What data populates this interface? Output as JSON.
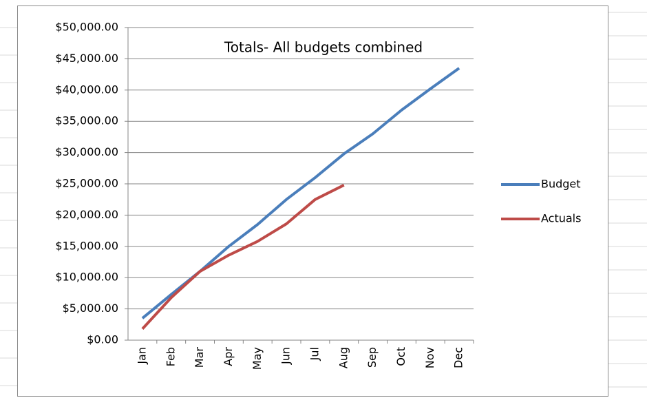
{
  "chart_data": {
    "type": "line",
    "title": "Totals- All budgets combined",
    "categories": [
      "Jan",
      "Feb",
      "Mar",
      "Apr",
      "May",
      "Jun",
      "Jul",
      "Aug",
      "Sep",
      "Oct",
      "Nov",
      "Dec"
    ],
    "series": [
      {
        "name": "Budget",
        "color": "#4a7ebb",
        "values": [
          3500,
          7300,
          11000,
          15000,
          18500,
          22500,
          26000,
          29800,
          33000,
          36800,
          40200,
          43500
        ]
      },
      {
        "name": "Actuals",
        "color": "#be4b48",
        "values": [
          1800,
          6800,
          11000,
          13600,
          15800,
          18600,
          22500,
          24800,
          null,
          null,
          null,
          null
        ]
      }
    ],
    "ylim": [
      0,
      50000
    ],
    "yticks": [
      {
        "value": 0,
        "label": "$0.00"
      },
      {
        "value": 5000,
        "label": "$5,000.00"
      },
      {
        "value": 10000,
        "label": "$10,000.00"
      },
      {
        "value": 15000,
        "label": "$15,000.00"
      },
      {
        "value": 20000,
        "label": "$20,000.00"
      },
      {
        "value": 25000,
        "label": "$25,000.00"
      },
      {
        "value": 30000,
        "label": "$30,000.00"
      },
      {
        "value": 35000,
        "label": "$35,000.00"
      },
      {
        "value": 40000,
        "label": "$40,000.00"
      },
      {
        "value": 45000,
        "label": "$45,000.00"
      },
      {
        "value": 50000,
        "label": "$50,000.00"
      }
    ],
    "grid": true,
    "legend": "right"
  }
}
